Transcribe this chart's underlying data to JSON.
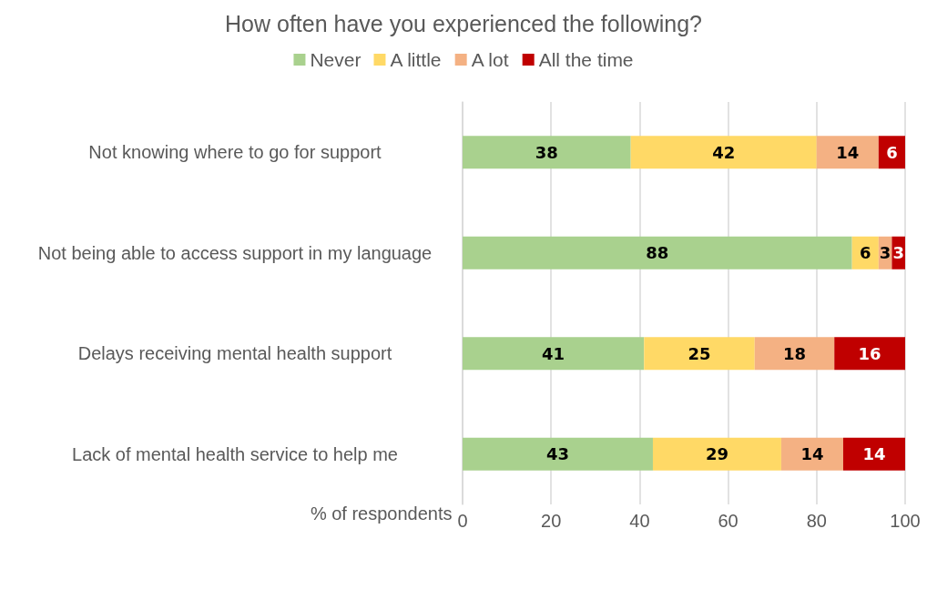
{
  "chart_data": {
    "type": "bar",
    "orientation": "horizontal",
    "stacked": true,
    "title": "How often have you experienced the following?",
    "xlabel": "% of respondents",
    "categories": [
      "Not knowing where to go for support",
      "Not being able to access support in my language",
      "Delays receiving mental health support",
      "Lack of mental health service to help me"
    ],
    "series": [
      {
        "name": "Never",
        "color": "#a9d18e",
        "values": [
          38,
          88,
          41,
          43
        ]
      },
      {
        "name": "A little",
        "color": "#ffd966",
        "values": [
          42,
          6,
          25,
          29
        ]
      },
      {
        "name": "A lot",
        "color": "#f4b183",
        "values": [
          14,
          3,
          18,
          14
        ]
      },
      {
        "name": "All the time",
        "color": "#c00000",
        "values": [
          6,
          3,
          16,
          14
        ]
      }
    ],
    "xlim": [
      0,
      100
    ],
    "xticks": [
      0,
      20,
      40,
      60,
      80,
      100
    ],
    "grid": "x",
    "legend": "top",
    "data_labels": true
  }
}
